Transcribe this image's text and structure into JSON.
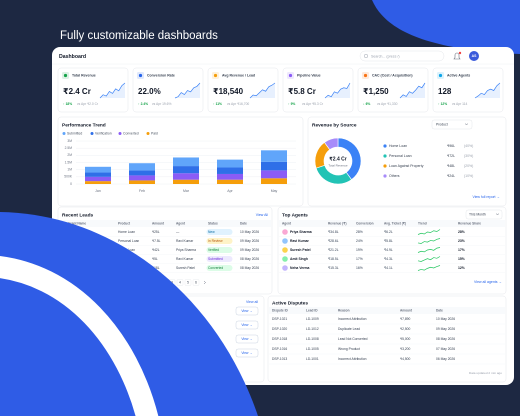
{
  "headline": "Fully customizable dashboards",
  "header": {
    "title": "Dashboard",
    "search": "Search... (press /)",
    "avatar": "AS"
  },
  "kpis": [
    {
      "label": "Total Revenue",
      "value": "₹2.4 Cr",
      "change": "↑ 18%",
      "compare": "vs Apr ₹2.0 Cr",
      "color": "#16a34a",
      "trend": [
        3,
        4,
        3.6,
        5,
        4.4,
        5.8,
        5.2,
        6.8,
        7.6
      ]
    },
    {
      "label": "Conversion Rate",
      "value": "22.0%",
      "change": "↑ 2.4%",
      "compare": "vs Apr 19.6%",
      "color": "#2563eb",
      "trend": [
        3,
        3.4,
        4.6,
        4,
        5.2,
        4.8,
        6,
        6.4,
        7.4
      ]
    },
    {
      "label": "Avg Revenue / Lead",
      "value": "₹18,540",
      "change": "↑ 11%",
      "compare": "vs Apr ₹16,700",
      "color": "#f59e0b",
      "trend": [
        3.2,
        4,
        3.8,
        4.6,
        5.4,
        5,
        6.2,
        6.6,
        7.2
      ]
    },
    {
      "label": "Pipeline Value",
      "value": "₹5.8 Cr",
      "change": "↑ 9%",
      "compare": "vs Apr ₹5.3 Cr",
      "color": "#8b5cf6",
      "trend": [
        3,
        3.8,
        3.4,
        4.8,
        4.4,
        5.6,
        6,
        5.8,
        7.4
      ]
    },
    {
      "label": "CAC (Cost / Acquisition)",
      "value": "₹1,250",
      "change": "↓ 6%",
      "compare": "vs Apr ₹1,330",
      "color": "#f97316",
      "trend": [
        3.4,
        4.2,
        3.8,
        5,
        4.6,
        5.4,
        6.4,
        6,
        7.2
      ]
    },
    {
      "label": "Active Agents",
      "value": "128",
      "change": "↑ 12%",
      "compare": "vs Apr 114",
      "color": "#0ea5e9",
      "trend": [
        3,
        3.6,
        4.4,
        4,
        5.2,
        5.6,
        5.2,
        6.6,
        7.4
      ]
    }
  ],
  "performance": {
    "type": "bar",
    "stacked": true,
    "title": "Performance Trend",
    "categories": [
      "Jan",
      "Feb",
      "Mar",
      "Apr",
      "May"
    ],
    "series": [
      {
        "name": "Submitted",
        "color": "#60a5fa",
        "values": [
          400000,
          500000,
          600000,
          550000,
          800000
        ]
      },
      {
        "name": "Verification",
        "color": "#2f6fe8",
        "values": [
          300000,
          350000,
          500000,
          450000,
          600000
        ]
      },
      {
        "name": "Converted",
        "color": "#8b5cf6",
        "values": [
          300000,
          350000,
          450000,
          400000,
          550000
        ]
      },
      {
        "name": "Paid",
        "color": "#f59e0b",
        "values": [
          200000,
          250000,
          300000,
          300000,
          400000
        ]
      }
    ],
    "ylim": [
      0,
      3000000
    ],
    "yticks": [
      0,
      {
        "value": 500000,
        "label": "500K"
      },
      {
        "value": 1000000,
        "label": "1M"
      },
      {
        "value": 1500000,
        "label": "1.5M"
      },
      {
        "value": 2000000,
        "label": "2M"
      },
      {
        "value": 2500000,
        "label": "2.5M"
      },
      {
        "value": 3000000,
        "label": "3M"
      }
    ],
    "grid": true
  },
  "revenue_by_source": {
    "type": "pie",
    "title": "Revenue by Source",
    "filter": "Product",
    "center_value": "₹2.4 Cr",
    "center_label": "Total Revenue",
    "categories": [
      "Home Loan",
      "Personal Loan",
      "Loan Against Property",
      "Others"
    ],
    "colors": [
      "#3b82f6",
      "#22c3b5",
      "#f59e0b",
      "#a78bfa"
    ],
    "values": [
      40,
      30,
      20,
      10
    ],
    "value_labels": [
      "(40%)",
      "(30%)",
      "(20%)",
      "(10%)"
    ],
    "amounts": [
      "₹96L",
      "₹72L",
      "₹48L",
      "₹24L"
    ],
    "link": "View full report →"
  },
  "recent_leads": {
    "title": "Recent Leads",
    "link": "View All",
    "columns": [
      "Applicant Name",
      "Product",
      "Amount",
      "Agent",
      "Status",
      "Date"
    ],
    "rows": [
      [
        "Aarav Mehta",
        "Home Loan",
        "₹25L",
        "—",
        "New",
        "10 May 2026"
      ],
      [
        "Sneha Kapoor",
        "Personal Loan",
        "₹7.5L",
        "Ravi Kumar",
        "In Review",
        "09 May 2026"
      ],
      [
        "Vikram Rao",
        "Home Loan",
        "₹42L",
        "Priya Sharma",
        "Verified",
        "09 May 2026"
      ],
      [
        "Karan Malhotra",
        "Personal Loan",
        "₹5L",
        "Ravi Kumar",
        "Submitted",
        "08 May 2026"
      ],
      [
        "Meera Iyer",
        "Loan Against Property",
        "₹18L",
        "Suresh Patel",
        "Converted",
        "08 May 2026"
      ]
    ],
    "pages": [
      "1",
      "2",
      "3",
      "4",
      "5",
      "6"
    ]
  },
  "top_agents": {
    "title": "Top Agents",
    "filter": "This Month",
    "columns": [
      "Agent",
      "Revenue (₹)",
      "Conversion",
      "Avg. Ticket (₹)",
      "Trend",
      "Revenue Share"
    ],
    "rows": [
      {
        "name": "Priya Sharma",
        "revenue": "₹34.8L",
        "conversion": "28%",
        "ticket": "₹6.2L",
        "trend": [
          3,
          4,
          3.4,
          5,
          4.6,
          6,
          5.4,
          7
        ],
        "share": "28%"
      },
      {
        "name": "Ravi Kumar",
        "revenue": "₹28.6L",
        "conversion": "24%",
        "ticket": "₹5.8L",
        "trend": [
          3.4,
          3,
          4.4,
          4,
          5.2,
          4.8,
          6,
          6.6
        ],
        "share": "23%"
      },
      {
        "name": "Suresh Patel",
        "revenue": "₹21.2L",
        "conversion": "19%",
        "ticket": "₹4.9L",
        "trend": [
          3,
          3.8,
          3.4,
          4.6,
          5,
          4.4,
          5.8,
          6.2
        ],
        "share": "17%"
      },
      {
        "name": "Amit Singh",
        "revenue": "₹18.5L",
        "conversion": "17%",
        "ticket": "₹4.3L",
        "trend": [
          3.6,
          3.2,
          4,
          4.8,
          4.2,
          5.4,
          5,
          6
        ],
        "share": "15%"
      },
      {
        "name": "Neha Verma",
        "revenue": "₹15.3L",
        "conversion": "16%",
        "ticket": "₹4.1L",
        "trend": [
          3,
          3.6,
          3.2,
          4.2,
          4.8,
          4.4,
          5.2,
          5.8
        ],
        "share": "12%"
      }
    ],
    "link": "View all agents →"
  },
  "lead_actions": {
    "link": "View all",
    "buttons": [
      "View →",
      "View →",
      "View →",
      "View →"
    ]
  },
  "active_disputes": {
    "title": "Active Disputes",
    "columns": [
      "Dispute ID",
      "Lead ID",
      "Reason",
      "Amount",
      "Date"
    ],
    "rows": [
      [
        "DSP-1021",
        "LD-1009",
        "Incorrect Attribution",
        "₹7,890",
        "10 May 2026"
      ],
      [
        "DSP-1020",
        "LD-1012",
        "Duplicate Lead",
        "₹2,500",
        "09 May 2026"
      ],
      [
        "DSP-1018",
        "LD-1008",
        "Lead Not Converted",
        "₹5,000",
        "08 May 2026"
      ],
      [
        "DSP-1016",
        "LD-1005",
        "Wrong Product",
        "₹3,200",
        "07 May 2026"
      ],
      [
        "DSP-1013",
        "LD-1001",
        "Incorrect Attribution",
        "₹4,500",
        "06 May 2026"
      ]
    ],
    "footer": "Data updated 2 min ago"
  }
}
